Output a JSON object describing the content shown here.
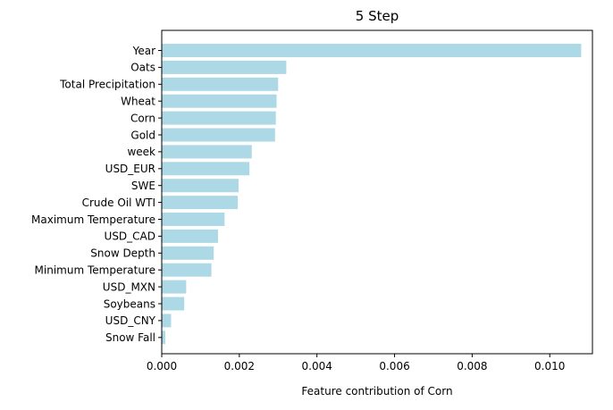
{
  "chart_data": {
    "type": "bar",
    "orientation": "horizontal",
    "title": "5 Step",
    "xlabel": "Feature contribution of Corn",
    "ylabel": "",
    "xlim": [
      0,
      0.0111
    ],
    "xticks": [
      "0.000",
      "0.002",
      "0.004",
      "0.006",
      "0.008",
      "0.010"
    ],
    "xtick_values": [
      0,
      0.002,
      0.004,
      0.006,
      0.008,
      0.01
    ],
    "bar_color": "#add8e6",
    "grid": false,
    "legend": "none",
    "categories": [
      "Year",
      "Oats",
      "Total Precipitation",
      "Wheat",
      "Corn",
      "Gold",
      "week",
      "USD_EUR",
      "SWE",
      "Crude Oil WTI",
      "Maximum Temperature",
      "USD_CAD",
      "Snow Depth",
      "Minimum Temperature",
      "USD_MXN",
      "Soybeans",
      "USD_CNY",
      "Snow Fall"
    ],
    "values": [
      0.01081,
      0.00321,
      0.003,
      0.00296,
      0.00294,
      0.00292,
      0.00232,
      0.00226,
      0.00198,
      0.00196,
      0.00162,
      0.00145,
      0.00134,
      0.00128,
      0.00063,
      0.00058,
      0.00024,
      9e-05
    ]
  }
}
